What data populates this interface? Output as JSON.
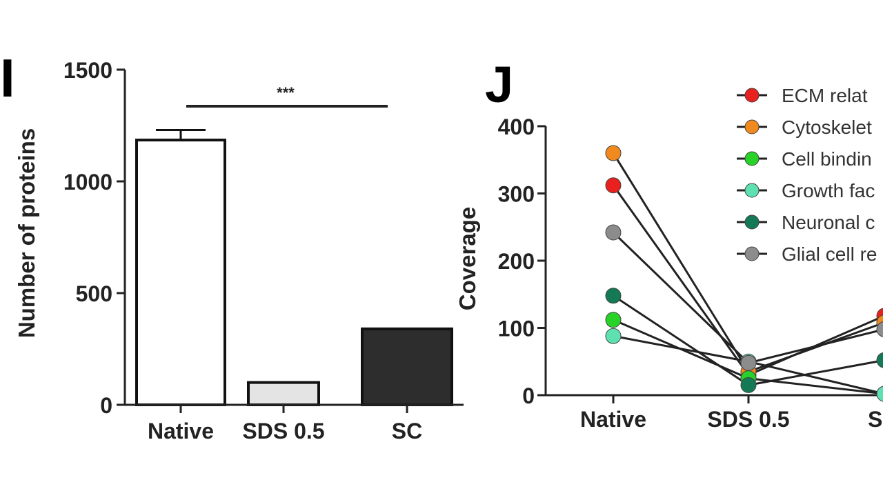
{
  "panels": [
    {
      "label": "I"
    },
    {
      "label": "J"
    }
  ],
  "chart_data": [
    {
      "type": "bar",
      "panel": "I",
      "title": "",
      "xlabel": "",
      "ylabel": "Number of proteins",
      "ylim": [
        0,
        1500
      ],
      "yticks": [
        "0",
        "500",
        "1000",
        "1500"
      ],
      "categories": [
        "Native",
        "SDS 0.5",
        "SC"
      ],
      "values": [
        1185,
        100,
        340
      ],
      "errors": [
        45,
        5,
        8
      ],
      "bar_colors": [
        "#ffffff",
        "#e4e4e4",
        "#2d2d2d"
      ],
      "significance": {
        "label": "***",
        "from": "Native",
        "to": "SC"
      }
    },
    {
      "type": "line",
      "panel": "J",
      "title": "",
      "xlabel": "",
      "ylabel": "Coverage",
      "ylim": [
        0,
        400
      ],
      "yticks": [
        "0",
        "100",
        "200",
        "300",
        "400"
      ],
      "categories": [
        "Native",
        "SDS 0.5",
        "SC"
      ],
      "visible_category_labels": [
        "Native",
        "SDS 0.5",
        "S"
      ],
      "legend_position": "top-right",
      "series": [
        {
          "name": "ECM relat",
          "color": "#e8201e",
          "values": [
            312,
            30,
            118
          ]
        },
        {
          "name": "Cytoskelet",
          "color": "#f08a1e",
          "values": [
            360,
            35,
            108
          ]
        },
        {
          "name": "Cell bindin",
          "color": "#28d228",
          "values": [
            112,
            25,
            2
          ]
        },
        {
          "name": "Growth fac",
          "color": "#5ee0b0",
          "values": [
            88,
            50,
            2
          ]
        },
        {
          "name": "Neuronal c",
          "color": "#137a55",
          "values": [
            148,
            15,
            52
          ]
        },
        {
          "name": "Glial cell re",
          "color": "#8c8c8c",
          "values": [
            242,
            48,
            98
          ]
        }
      ]
    }
  ]
}
